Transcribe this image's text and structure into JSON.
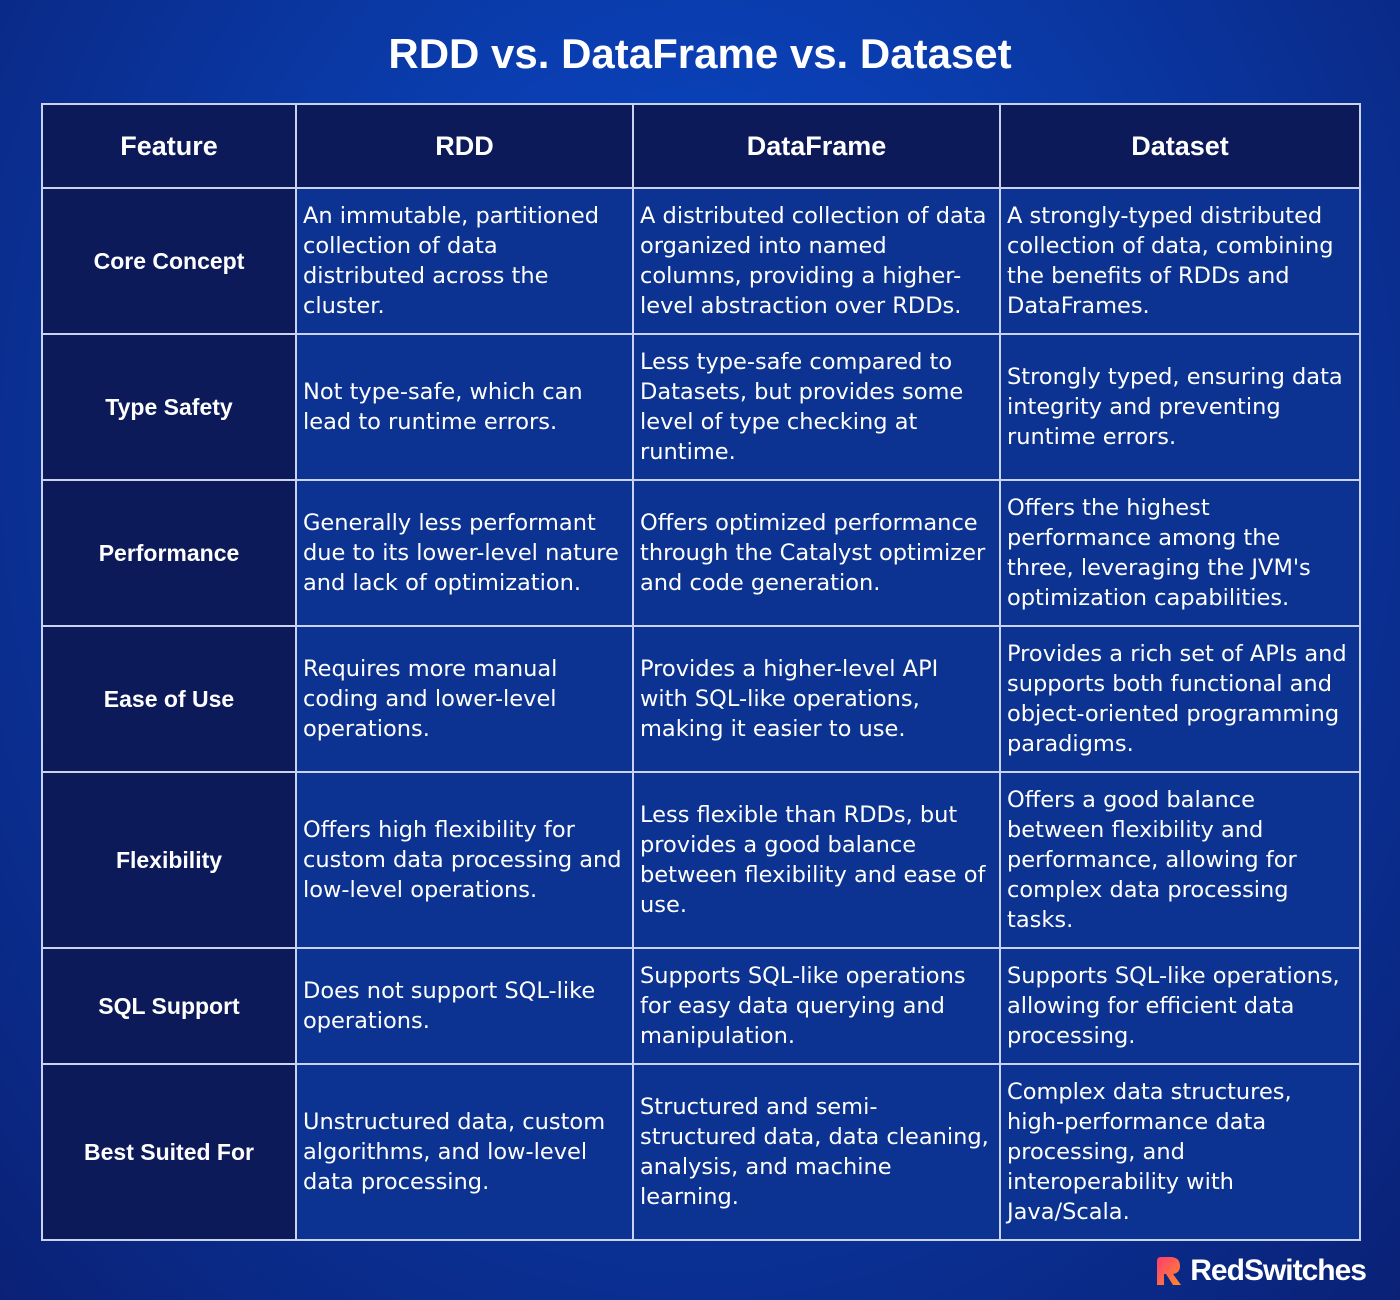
{
  "header": {
    "title": "RDD vs. DataFrame vs. Dataset"
  },
  "table": {
    "columns": [
      "Feature",
      "RDD",
      "DataFrame",
      "Dataset"
    ],
    "rows": [
      [
        "Core Concept",
        "An immutable, partitioned collection of data distributed across the cluster.",
        "A distributed collection of data organized into named columns, providing a higher-level abstraction over RDDs.",
        "A strongly-typed distributed collection of data, combining the benefits of RDDs and DataFrames."
      ],
      [
        "Type Safety",
        "Not type-safe, which can lead to runtime errors.",
        "Less type-safe compared to Datasets, but provides some level of type checking at runtime.",
        "Strongly typed, ensuring data integrity and preventing runtime errors."
      ],
      [
        "Performance",
        "Generally less performant due to its lower-level nature and lack of optimization.",
        "Offers optimized performance through the Catalyst optimizer and code generation.",
        "Offers the highest performance among the three, leveraging the JVM's optimization capabilities."
      ],
      [
        "Ease of Use",
        "Requires more manual coding and lower-level operations.",
        "Provides a higher-level API with SQL-like operations, making it easier to use.",
        "Provides a rich set of APIs and supports both functional and object-oriented programming paradigms."
      ],
      [
        "Flexibility",
        "Offers high flexibility for custom data processing and low-level operations.",
        "Less flexible than RDDs, but provides a good balance between flexibility and ease of use.",
        "Offers a good balance between flexibility and performance, allowing for complex data processing tasks."
      ],
      [
        "SQL Support",
        "Does not support SQL-like operations.",
        "Supports SQL-like operations for easy data querying and manipulation.",
        "Supports SQL-like operations, allowing for efficient data processing."
      ],
      [
        "Best Suited For",
        "Unstructured data, custom algorithms, and low-level data processing.",
        "Structured and semi-structured data, data cleaning, analysis, and machine learning.",
        "Complex data structures, high-performance data processing, and interoperability with Java/Scala."
      ]
    ]
  },
  "footer": {
    "brand": "RedSwitches"
  }
}
